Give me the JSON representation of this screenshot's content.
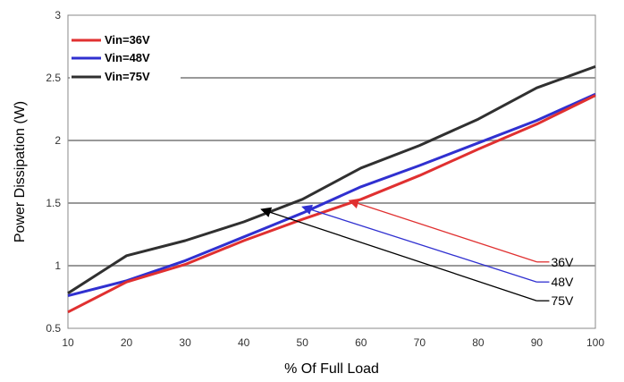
{
  "chart_data": {
    "type": "line",
    "xlabel": "% Of Full Load",
    "ylabel": "Power Dissipation (W)",
    "xlim": [
      10,
      100
    ],
    "ylim": [
      0.5,
      3
    ],
    "x_ticks": [
      "10",
      "20",
      "30",
      "40",
      "50",
      "60",
      "70",
      "80",
      "90",
      "100"
    ],
    "y_ticks": [
      "0.5",
      "1",
      "1.5",
      "2",
      "2.5",
      "3"
    ],
    "grid": "horizontal",
    "legend_position": "top-left",
    "series": [
      {
        "name": "Vin=36V",
        "color": "#e03030",
        "x": [
          10,
          20,
          30,
          40,
          50,
          60,
          70,
          80,
          90,
          100
        ],
        "y": [
          0.63,
          0.87,
          1.01,
          1.2,
          1.37,
          1.53,
          1.72,
          1.93,
          2.13,
          2.36
        ]
      },
      {
        "name": "Vin=48V",
        "color": "#3030d0",
        "x": [
          10,
          20,
          30,
          40,
          50,
          60,
          70,
          80,
          90,
          100
        ],
        "y": [
          0.76,
          0.88,
          1.04,
          1.23,
          1.42,
          1.63,
          1.8,
          1.98,
          2.16,
          2.37
        ]
      },
      {
        "name": "Vin=75V",
        "color": "#303030",
        "x": [
          10,
          20,
          30,
          40,
          50,
          60,
          70,
          80,
          90,
          100
        ],
        "y": [
          0.78,
          1.08,
          1.2,
          1.35,
          1.53,
          1.78,
          1.96,
          2.17,
          2.42,
          2.59
        ]
      }
    ],
    "annotations": [
      {
        "label": "36V",
        "color": "#e03030",
        "from": [
          90,
          1.03
        ],
        "to": [
          58,
          1.52
        ]
      },
      {
        "label": "48V",
        "color": "#3030d0",
        "from": [
          90,
          0.87
        ],
        "to": [
          50,
          1.47
        ]
      },
      {
        "label": "75V",
        "color": "#000000",
        "from": [
          90,
          0.72
        ],
        "to": [
          43,
          1.45
        ]
      }
    ]
  }
}
